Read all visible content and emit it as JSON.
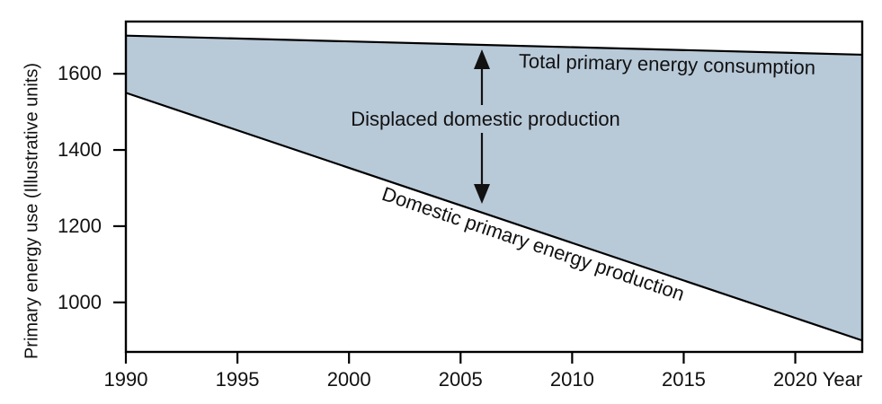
{
  "figure": {
    "background_color": "#ffffff",
    "text_color": "#111111",
    "line_color": "#000000"
  },
  "annotations": {
    "consumption_label": "Total primary energy consumption",
    "displaced_label": "Displaced domestic production",
    "production_label": "Domestic primary energy production",
    "displaced_arrow": "vertical double-headed arrow between consumption and production lines"
  },
  "chart_data": {
    "type": "area",
    "title": "",
    "xlabel": "Year",
    "ylabel": "Primary energy use (Illustrative units)",
    "x_ticks": [
      1990,
      1995,
      2000,
      2005,
      2010,
      2015,
      2020
    ],
    "y_ticks": [
      1000,
      1200,
      1400,
      1600
    ],
    "xlim": [
      1990,
      2023
    ],
    "ylim": [
      870,
      1737
    ],
    "grid": false,
    "legend_position": "inline-annotations",
    "series": [
      {
        "name": "Total primary energy consumption",
        "x": [
          1990,
          2023
        ],
        "values": [
          1700,
          1650
        ]
      },
      {
        "name": "Domestic primary energy production",
        "x": [
          1990,
          2023
        ],
        "values": [
          1550,
          900
        ]
      }
    ],
    "area_between": {
      "label": "Displaced domestic production",
      "upper": "Total primary energy consumption",
      "lower": "Domestic primary energy production",
      "fill_color": "#b8c9d8"
    }
  }
}
